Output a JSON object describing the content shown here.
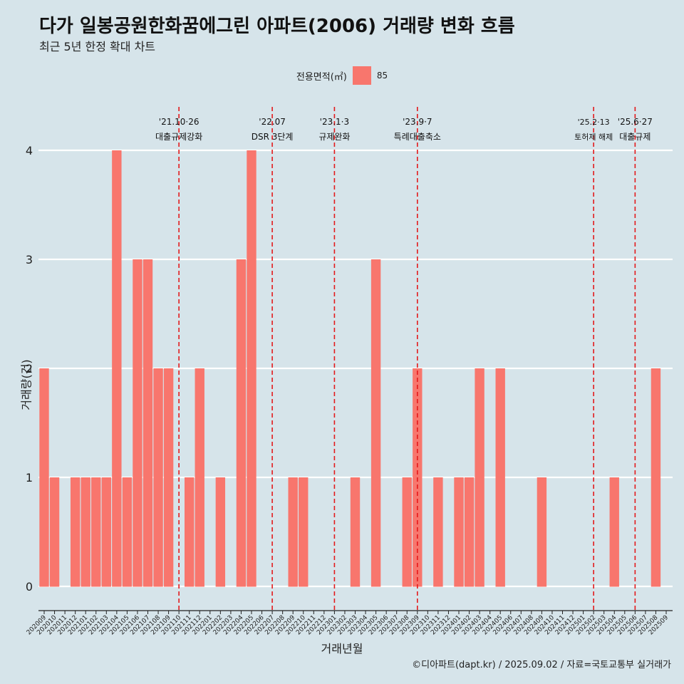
{
  "title": "다가 일봉공원한화꿈에그린 아파트(2006) 거래량 변화 흐름",
  "subtitle": "최근 5년 한정 확대 차트",
  "caption": "©디아파트(dapt.kr) / 2025.09.02 / 자료=국토교통부 실거래가",
  "colors": {
    "background": "#d6e4ea",
    "bar": "#f8766d",
    "event_line": "#e31a1c",
    "grid": "#ffffff"
  },
  "chart_data": {
    "type": "bar",
    "xlabel": "거래년월",
    "ylabel": "거래량(건)",
    "ylim": [
      0,
      4
    ],
    "yticks": [
      0,
      1,
      2,
      3,
      4
    ],
    "grid": true,
    "legend": {
      "title": "전용면적(㎡)",
      "entries": [
        "85"
      ],
      "position": "top"
    },
    "series": [
      {
        "name": "85"
      }
    ],
    "categories": [
      "202009",
      "202010",
      "202011",
      "202012",
      "202101",
      "202102",
      "202103",
      "202104",
      "202105",
      "202106",
      "202107",
      "202108",
      "202109",
      "202110",
      "202111",
      "202112",
      "202201",
      "202202",
      "202203",
      "202204",
      "202205",
      "202206",
      "202207",
      "202208",
      "202209",
      "202210",
      "202211",
      "202212",
      "202301",
      "202302",
      "202303",
      "202304",
      "202305",
      "202306",
      "202307",
      "202308",
      "202309",
      "202310",
      "202311",
      "202312",
      "202401",
      "202402",
      "202403",
      "202404",
      "202405",
      "202406",
      "202407",
      "202408",
      "202409",
      "202410",
      "202411",
      "202412",
      "202501",
      "202502",
      "202503",
      "202504",
      "202505",
      "202506",
      "202507",
      "202508",
      "202509"
    ],
    "values": [
      2,
      1,
      0,
      1,
      1,
      1,
      1,
      4,
      1,
      3,
      3,
      2,
      2,
      0,
      1,
      2,
      0,
      1,
      0,
      3,
      4,
      0,
      0,
      0,
      1,
      1,
      0,
      0,
      0,
      0,
      1,
      0,
      3,
      0,
      0,
      1,
      2,
      0,
      1,
      0,
      1,
      1,
      2,
      0,
      2,
      0,
      0,
      0,
      1,
      0,
      0,
      0,
      0,
      0,
      0,
      1,
      0,
      0,
      0,
      2,
      0
    ],
    "bar_label_positions": [
      0,
      1,
      3,
      4,
      5,
      6,
      7,
      8,
      9,
      10,
      11,
      12,
      14,
      15,
      17,
      19,
      20,
      24,
      25,
      30,
      32,
      35,
      36,
      38,
      40,
      41,
      42,
      44,
      48,
      55,
      59
    ],
    "events": [
      {
        "x": "202110",
        "date": "'21.10·26",
        "label": "대출규제강화"
      },
      {
        "x": "202207",
        "date": "'22.07",
        "label": "DSR 3단계"
      },
      {
        "x": "202301",
        "date": "'23.1·3",
        "label": "규제완화"
      },
      {
        "x": "202309",
        "date": "'23.9·7",
        "label": "특례대출축소"
      },
      {
        "x": "202502",
        "date": "'25.2·13",
        "label": "토허제 해제"
      },
      {
        "x": "202506",
        "date": "'25.6·27",
        "label": "대출규제"
      }
    ]
  }
}
